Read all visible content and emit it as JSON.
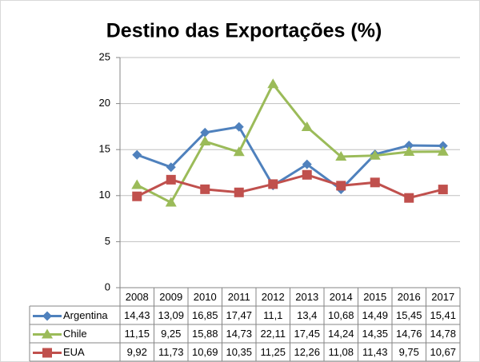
{
  "chart_data": {
    "type": "line",
    "title": "Destino das Exportações (%)",
    "categories": [
      "2008",
      "2009",
      "2010",
      "2011",
      "2012",
      "2013",
      "2014",
      "2015",
      "2016",
      "2017"
    ],
    "ylim": [
      0,
      25
    ],
    "yticks": [
      0,
      5,
      10,
      15,
      20,
      25
    ],
    "grid": true,
    "data_table": true,
    "series": [
      {
        "name": "Argentina",
        "color": "#4f81bd",
        "marker": "diamond",
        "values": [
          14.43,
          13.09,
          16.85,
          17.47,
          11.1,
          13.4,
          10.68,
          14.49,
          15.45,
          15.41
        ],
        "value_labels": [
          "14,43",
          "13,09",
          "16,85",
          "17,47",
          "11,1",
          "13,4",
          "10,68",
          "14,49",
          "15,45",
          "15,41"
        ]
      },
      {
        "name": "Chile",
        "color": "#9bbb59",
        "marker": "triangle",
        "values": [
          11.15,
          9.25,
          15.88,
          14.73,
          22.11,
          17.45,
          14.24,
          14.35,
          14.76,
          14.78
        ],
        "value_labels": [
          "11,15",
          "9,25",
          "15,88",
          "14,73",
          "22,11",
          "17,45",
          "14,24",
          "14,35",
          "14,76",
          "14,78"
        ]
      },
      {
        "name": "EUA",
        "color": "#c0504d",
        "marker": "square",
        "values": [
          9.92,
          11.73,
          10.69,
          10.35,
          11.25,
          12.26,
          11.08,
          11.43,
          9.75,
          10.67
        ],
        "value_labels": [
          "9,92",
          "11,73",
          "10,69",
          "10,35",
          "11,25",
          "12,26",
          "11,08",
          "11,43",
          "9,75",
          "10,67"
        ]
      }
    ]
  }
}
